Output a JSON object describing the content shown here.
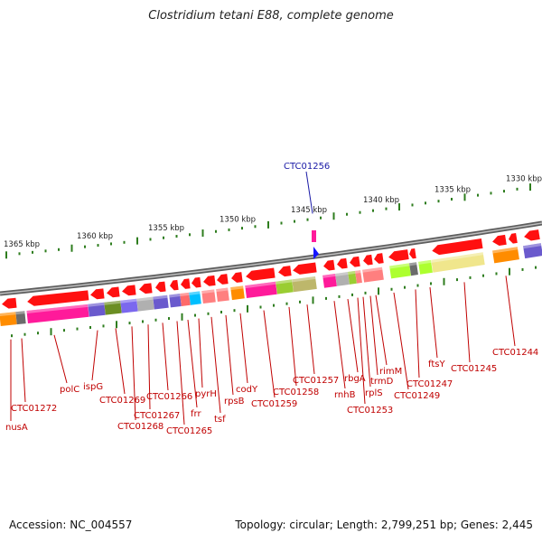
{
  "title": "Clostridium tetani E88, complete genome",
  "accession_label": "Accession: NC_004557",
  "topology_label": "Topology: circular; Length: 2,799,251 bp; Genes: 2,445",
  "scale_labels": [
    "1365 kbp",
    "1360 kbp",
    "1355 kbp",
    "1350 kbp",
    "1345 kbp",
    "1340 kbp",
    "1335 kbp",
    "1330 kbp"
  ],
  "highlight_gene": "CTC01256",
  "colors": {
    "arrow": "#ff1010",
    "track": "#808080",
    "tick": "#2e7d1e",
    "label": "#c00000",
    "highlight": "#1a1aa6"
  },
  "gene_labels": [
    "nusA",
    "CTC01272",
    "polC",
    "ispG",
    "CTC01269",
    "CTC01268",
    "CTC01267",
    "CTC01266",
    "CTC01265",
    "frr",
    "pyrH",
    "tsf",
    "rpsB",
    "codY",
    "CTC01259",
    "CTC01258",
    "CTC01257",
    "rnhB",
    "rbgA",
    "CTC01253",
    "rplS",
    "trmD",
    "rimM",
    "CTC01249",
    "CTC01247",
    "ftsY",
    "CTC01245",
    "CTC01244"
  ]
}
